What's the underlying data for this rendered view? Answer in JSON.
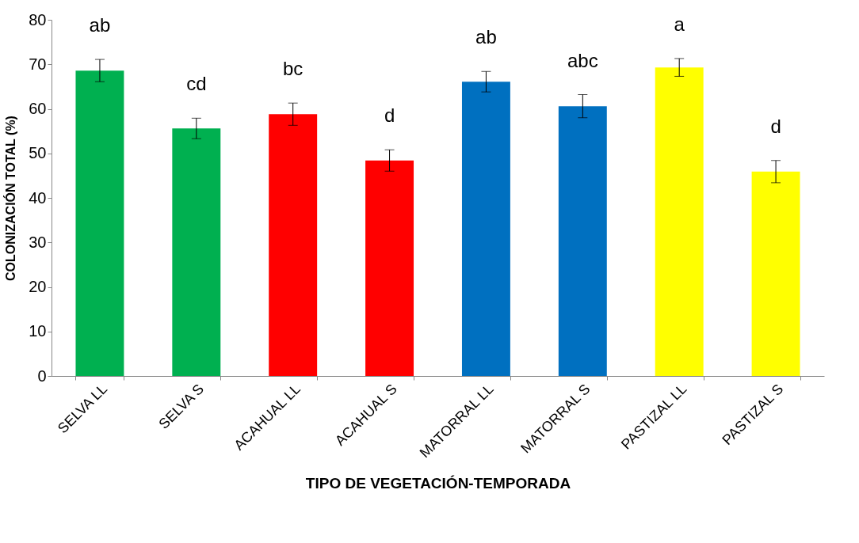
{
  "chart_data": {
    "type": "bar",
    "xlabel": "TIPO DE VEGETACIÓN-TEMPORADA",
    "ylabel": "COLONIZACIÓN TOTAL (%)",
    "categories": [
      "SELVA LL",
      "SELVA S",
      "ACAHUAL LL",
      "ACAHUAL S",
      "MATORRAL LL",
      "MATORRAL S",
      "PASTIZAL LL",
      "PASTIZAL S"
    ],
    "values": [
      68.6,
      55.6,
      58.8,
      48.4,
      66.1,
      60.6,
      69.3,
      45.9
    ],
    "errors": [
      2.5,
      2.3,
      2.5,
      2.4,
      2.3,
      2.6,
      2.0,
      2.5
    ],
    "colors": [
      "#00b050",
      "#00b050",
      "#ff0000",
      "#ff0000",
      "#0070c0",
      "#0070c0",
      "#ffff00",
      "#ffff00"
    ],
    "ylim": [
      0,
      80
    ],
    "yticks": [
      0,
      10,
      20,
      30,
      40,
      50,
      60,
      70,
      80
    ],
    "grid": false,
    "legend": false,
    "annotations": [
      "ab",
      "cd",
      "bc",
      "d",
      "ab",
      "abc",
      "a",
      "d"
    ]
  }
}
